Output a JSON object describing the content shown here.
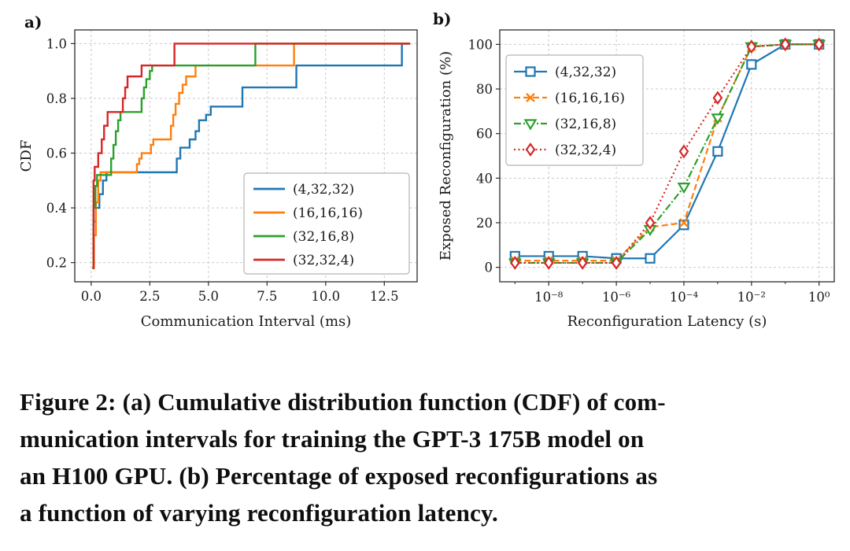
{
  "panels": {
    "a": "a)",
    "b": "b)"
  },
  "caption": {
    "lines": [
      "Figure 2: (a) Cumulative distribution function (CDF) of com-",
      "munication intervals for training the GPT-3 175B model on",
      "an H100 GPU. (b) Percentage of exposed reconfigurations as",
      "a function of varying reconfiguration latency."
    ]
  },
  "colors": {
    "blue": "#1f77b4",
    "orange": "#ff7f0e",
    "green": "#2ca02c",
    "red": "#d62728",
    "grid": "#c9c9c9",
    "spine": "#2b2b2b"
  },
  "chart_data": [
    {
      "id": "cdf-communication-intervals",
      "type": "line",
      "subtype": "step-cdf",
      "title": "",
      "xlabel": "Communication Interval (ms)",
      "ylabel": "CDF",
      "xlim": [
        -0.7,
        13.9
      ],
      "ylim": [
        0.13,
        1.05
      ],
      "xticks": [
        0,
        2.5,
        5,
        7.5,
        10,
        12.5
      ],
      "xtick_labels": [
        "0.0",
        "2.5",
        "5.0",
        "7.5",
        "10.0",
        "12.5"
      ],
      "yticks": [
        0.2,
        0.4,
        0.6,
        0.8,
        1.0
      ],
      "ytick_labels": [
        "0.2",
        "0.4",
        "0.6",
        "0.8",
        "1.0"
      ],
      "grid": true,
      "legend_position": "lower right",
      "series": [
        {
          "name": "(4,32,32)",
          "color": "#1f77b4",
          "linestyle": "solid",
          "points": [
            [
              0.05,
              0.18
            ],
            [
              0.1,
              0.35
            ],
            [
              0.2,
              0.4
            ],
            [
              0.35,
              0.45
            ],
            [
              0.5,
              0.5
            ],
            [
              0.65,
              0.53
            ],
            [
              3.5,
              0.53
            ],
            [
              3.65,
              0.58
            ],
            [
              3.8,
              0.62
            ],
            [
              4.2,
              0.65
            ],
            [
              4.45,
              0.68
            ],
            [
              4.6,
              0.72
            ],
            [
              4.9,
              0.74
            ],
            [
              5.1,
              0.77
            ],
            [
              6.3,
              0.77
            ],
            [
              6.45,
              0.84
            ],
            [
              8.6,
              0.84
            ],
            [
              8.75,
              0.92
            ],
            [
              13.1,
              0.92
            ],
            [
              13.25,
              1.0
            ],
            [
              13.6,
              1.0
            ]
          ]
        },
        {
          "name": "(16,16,16)",
          "color": "#ff7f0e",
          "linestyle": "solid",
          "points": [
            [
              0.05,
              0.18
            ],
            [
              0.12,
              0.3
            ],
            [
              0.2,
              0.42
            ],
            [
              0.3,
              0.5
            ],
            [
              0.4,
              0.53
            ],
            [
              1.85,
              0.53
            ],
            [
              1.95,
              0.56
            ],
            [
              2.05,
              0.58
            ],
            [
              2.15,
              0.6
            ],
            [
              2.45,
              0.6
            ],
            [
              2.55,
              0.63
            ],
            [
              2.65,
              0.65
            ],
            [
              3.3,
              0.65
            ],
            [
              3.4,
              0.7
            ],
            [
              3.5,
              0.74
            ],
            [
              3.6,
              0.78
            ],
            [
              3.75,
              0.82
            ],
            [
              3.9,
              0.85
            ],
            [
              4.05,
              0.88
            ],
            [
              4.35,
              0.88
            ],
            [
              4.45,
              0.92
            ],
            [
              8.55,
              0.92
            ],
            [
              8.65,
              1.0
            ],
            [
              13.6,
              1.0
            ]
          ]
        },
        {
          "name": "(32,16,8)",
          "color": "#2ca02c",
          "linestyle": "solid",
          "points": [
            [
              0.05,
              0.18
            ],
            [
              0.1,
              0.4
            ],
            [
              0.18,
              0.48
            ],
            [
              0.25,
              0.52
            ],
            [
              0.75,
              0.52
            ],
            [
              0.85,
              0.58
            ],
            [
              0.95,
              0.63
            ],
            [
              1.05,
              0.68
            ],
            [
              1.15,
              0.72
            ],
            [
              1.25,
              0.75
            ],
            [
              2.05,
              0.75
            ],
            [
              2.15,
              0.8
            ],
            [
              2.25,
              0.84
            ],
            [
              2.35,
              0.87
            ],
            [
              2.5,
              0.9
            ],
            [
              2.6,
              0.92
            ],
            [
              6.9,
              0.92
            ],
            [
              7.0,
              1.0
            ],
            [
              13.6,
              1.0
            ]
          ]
        },
        {
          "name": "(32,32,4)",
          "color": "#d62728",
          "linestyle": "solid",
          "points": [
            [
              0.05,
              0.18
            ],
            [
              0.1,
              0.5
            ],
            [
              0.15,
              0.55
            ],
            [
              0.3,
              0.6
            ],
            [
              0.45,
              0.65
            ],
            [
              0.55,
              0.7
            ],
            [
              0.7,
              0.75
            ],
            [
              1.25,
              0.75
            ],
            [
              1.35,
              0.8
            ],
            [
              1.45,
              0.84
            ],
            [
              1.55,
              0.88
            ],
            [
              2.05,
              0.88
            ],
            [
              2.15,
              0.92
            ],
            [
              3.45,
              0.92
            ],
            [
              3.55,
              1.0
            ],
            [
              13.6,
              1.0
            ]
          ]
        }
      ]
    },
    {
      "id": "exposed-reconfiguration-vs-latency",
      "type": "line",
      "subtype": "log-x-markers",
      "title": "",
      "xlabel": "Reconfiguration Latency (s)",
      "ylabel": "Exposed Reconfiguration (%)",
      "x_scale": "log",
      "x_exponents": [
        -9,
        -8,
        -7,
        -6,
        -5,
        -4,
        -3,
        -2,
        -1,
        0
      ],
      "xlim_exponents": [
        -9.45,
        0.45
      ],
      "ylim": [
        -6.5,
        106.5
      ],
      "xticks_labeled_exponents": [
        -8,
        -6,
        -4,
        -2,
        0
      ],
      "xtick_labels": [
        "10⁻⁸",
        "10⁻⁶",
        "10⁻⁴",
        "10⁻²",
        "10⁰"
      ],
      "yticks": [
        0,
        20,
        40,
        60,
        80,
        100
      ],
      "ytick_labels": [
        "0",
        "20",
        "40",
        "60",
        "80",
        "100"
      ],
      "grid": true,
      "legend_position": "upper left",
      "series": [
        {
          "name": "(4,32,32)",
          "color": "#1f77b4",
          "linestyle": "solid",
          "marker": "square",
          "values": [
            5,
            5,
            5,
            4,
            4,
            19,
            52,
            91,
            100,
            100
          ]
        },
        {
          "name": "(16,16,16)",
          "color": "#ff7f0e",
          "linestyle": "dashed",
          "marker": "x",
          "values": [
            3,
            3,
            3,
            3,
            18,
            20,
            67,
            99,
            100,
            100
          ]
        },
        {
          "name": "(32,16,8)",
          "color": "#2ca02c",
          "linestyle": "dashdot",
          "marker": "triangle-down",
          "values": [
            2,
            2,
            2,
            2,
            17,
            36,
            67,
            99,
            100,
            100
          ]
        },
        {
          "name": "(32,32,4)",
          "color": "#d62728",
          "linestyle": "dotted",
          "marker": "diamond",
          "values": [
            2,
            2,
            2,
            2,
            20,
            52,
            76,
            99,
            100,
            100
          ]
        }
      ]
    }
  ]
}
